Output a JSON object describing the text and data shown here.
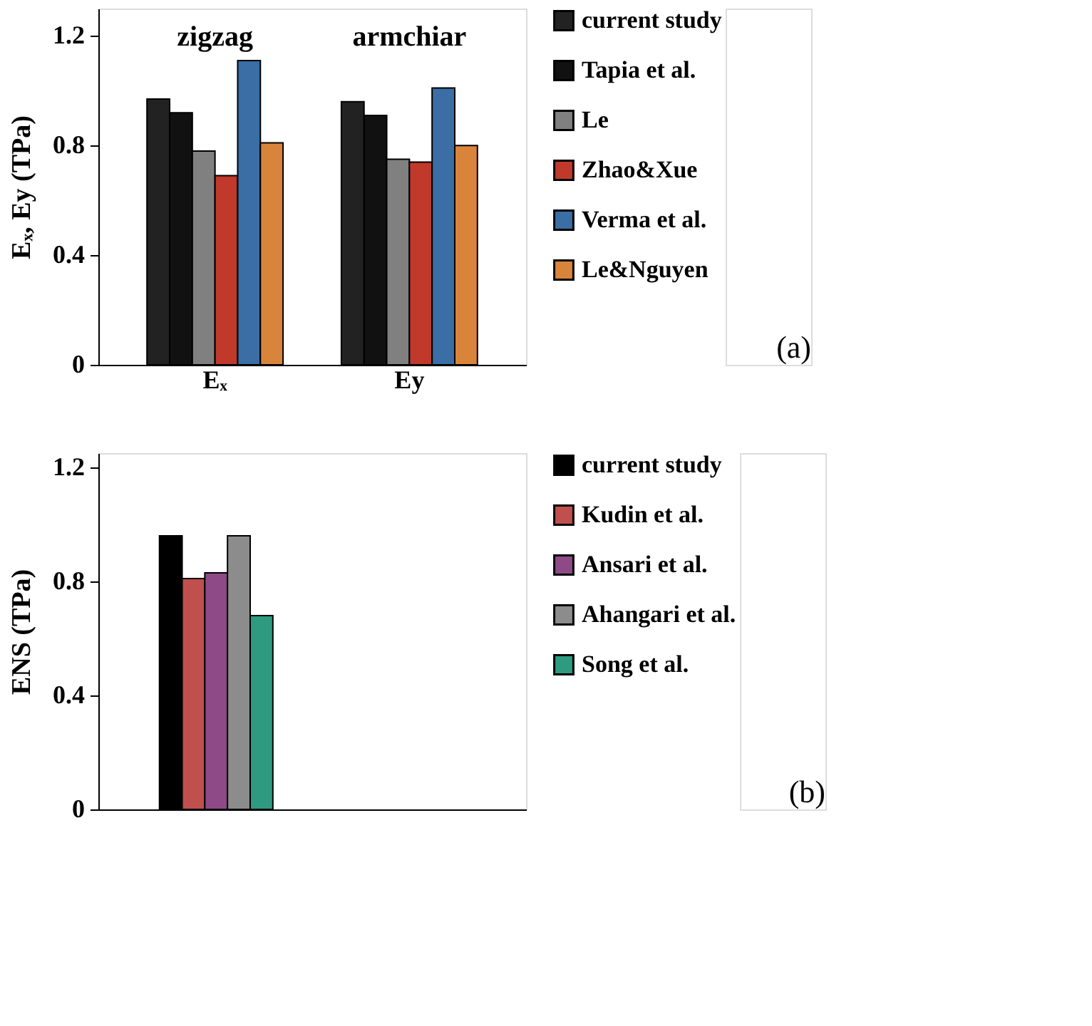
{
  "chart_data": [
    {
      "type": "bar",
      "categories": [
        "Eₓ",
        "Ey"
      ],
      "ylabel": "Eₓ, Ey  (TPa)",
      "ylim": [
        0,
        1.3
      ],
      "yticks": [
        0,
        0.4,
        0.8,
        1.2
      ],
      "grid": false,
      "legend": "right",
      "annotations": [
        "zigzag",
        "armchiar",
        "(a)"
      ],
      "series": [
        {
          "name": "current study",
          "color": "#222222",
          "values": [
            0.97,
            0.96
          ]
        },
        {
          "name": "Tapia et al.",
          "color": "#111111",
          "values": [
            0.92,
            0.91
          ]
        },
        {
          "name": "Le",
          "color": "#808080",
          "values": [
            0.78,
            0.75
          ]
        },
        {
          "name": "Zhao&Xue",
          "color": "#c0392b",
          "values": [
            0.69,
            0.74
          ]
        },
        {
          "name": "Verma et al.",
          "color": "#3a6ea5",
          "values": [
            1.11,
            1.01
          ]
        },
        {
          "name": "Le&Nguyen",
          "color": "#d9843b",
          "values": [
            0.81,
            0.8
          ]
        }
      ]
    },
    {
      "type": "bar",
      "categories": [
        null
      ],
      "ylabel": "ENS  (TPa)",
      "ylim": [
        0,
        1.25
      ],
      "yticks": [
        0,
        0.4,
        0.8,
        1.2
      ],
      "grid": false,
      "legend": "right",
      "annotations": [
        "(b)"
      ],
      "series": [
        {
          "name": "current study",
          "color": "#000000",
          "values": [
            0.96
          ]
        },
        {
          "name": "Kudin et al.",
          "color": "#c0504d",
          "values": [
            0.81
          ]
        },
        {
          "name": "Ansari et al.",
          "color": "#8e4a87",
          "values": [
            0.83
          ]
        },
        {
          "name": "Ahangari et al.",
          "color": "#8c8c8c",
          "values": [
            0.96
          ]
        },
        {
          "name": "Song et al.",
          "color": "#2e9b80",
          "values": [
            0.68
          ]
        }
      ]
    }
  ]
}
